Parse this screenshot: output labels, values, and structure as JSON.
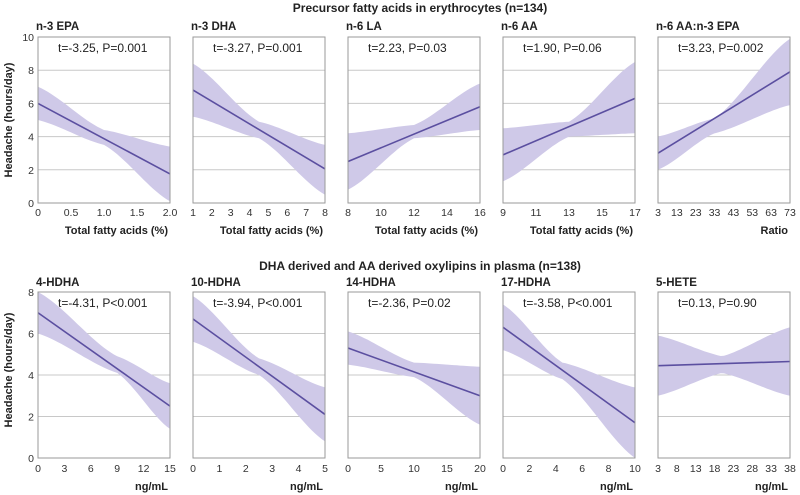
{
  "figure": {
    "row1_title": "Precursor fatty acids in erythrocytes (n=134)",
    "row2_title": "DHA derived and AA derived oxylipins in plasma (n=138)",
    "ylabel": "Headache (hours/day)"
  },
  "colors": {
    "band": "#cfc9e8",
    "line": "#5b4fa0",
    "grid": "#c8c8c8",
    "frame": "#9a9a9a"
  },
  "chart_data": [
    {
      "type": "line",
      "row": 1,
      "title": "n-3 EPA",
      "annotation": "t=-3.25, P=0.001",
      "xlabel": "Total fatty acids (%)",
      "ylabel": "Headache (hours/day)",
      "xlim": [
        0,
        2.0
      ],
      "ylim": [
        0,
        10
      ],
      "xticks": [
        0,
        0.5,
        1.0,
        1.5,
        2.0
      ],
      "xtick_labels": [
        "0",
        "0.5",
        "1.0",
        "1.5",
        "2.0"
      ],
      "yticks": [
        0,
        2,
        4,
        6,
        8,
        10
      ],
      "ytick_labels": [
        "0",
        "2",
        "4",
        "6",
        "8",
        "10"
      ],
      "line": [
        [
          0,
          6.0
        ],
        [
          2.0,
          1.75
        ]
      ],
      "band_upper": [
        [
          0,
          7.0
        ],
        [
          1.0,
          4.4
        ],
        [
          2.0,
          3.4
        ]
      ],
      "band_lower": [
        [
          0,
          5.0
        ],
        [
          1.0,
          3.5
        ],
        [
          2.0,
          0.1
        ]
      ]
    },
    {
      "type": "line",
      "row": 1,
      "title": "n-3 DHA",
      "annotation": "t=-3.27, P=0.001",
      "xlabel": "Total fatty acids (%)",
      "xlim": [
        1,
        8
      ],
      "ylim": [
        0,
        10
      ],
      "xticks": [
        1,
        2,
        3,
        4,
        5,
        6,
        7,
        8
      ],
      "xtick_labels": [
        "1",
        "2",
        "3",
        "4",
        "5",
        "6",
        "7",
        "8"
      ],
      "yticks": [
        0,
        2,
        4,
        6,
        8,
        10
      ],
      "line": [
        [
          1,
          6.8
        ],
        [
          8,
          2.05
        ]
      ],
      "band_upper": [
        [
          1,
          8.4
        ],
        [
          4.5,
          4.9
        ],
        [
          8,
          3.5
        ]
      ],
      "band_lower": [
        [
          1,
          5.2
        ],
        [
          4.5,
          3.9
        ],
        [
          8,
          0.5
        ]
      ]
    },
    {
      "type": "line",
      "row": 1,
      "title": "n-6 LA",
      "annotation": "t=2.23, P=0.03",
      "xlabel": "Total fatty acids (%)",
      "xlim": [
        8,
        16
      ],
      "ylim": [
        0,
        10
      ],
      "xticks": [
        8,
        10,
        12,
        14,
        16
      ],
      "xtick_labels": [
        "8",
        "10",
        "12",
        "14",
        "16"
      ],
      "yticks": [
        0,
        2,
        4,
        6,
        8,
        10
      ],
      "line": [
        [
          8,
          2.5
        ],
        [
          16,
          5.8
        ]
      ],
      "band_upper": [
        [
          8,
          4.2
        ],
        [
          12,
          4.7
        ],
        [
          16,
          7.2
        ]
      ],
      "band_lower": [
        [
          8,
          0.8
        ],
        [
          12,
          3.9
        ],
        [
          16,
          4.4
        ]
      ]
    },
    {
      "type": "line",
      "row": 1,
      "title": "n-6 AA",
      "annotation": "t=1.90, P=0.06",
      "xlabel": "Total fatty acids (%)",
      "xlim": [
        9,
        17
      ],
      "ylim": [
        0,
        10
      ],
      "xticks": [
        9,
        11,
        13,
        15,
        17
      ],
      "xtick_labels": [
        "9",
        "11",
        "13",
        "15",
        "17"
      ],
      "yticks": [
        0,
        2,
        4,
        6,
        8,
        10
      ],
      "line": [
        [
          9,
          2.9
        ],
        [
          17,
          6.3
        ]
      ],
      "band_upper": [
        [
          9,
          4.5
        ],
        [
          13,
          4.9
        ],
        [
          17,
          8.5
        ]
      ],
      "band_lower": [
        [
          9,
          1.3
        ],
        [
          13,
          4.0
        ],
        [
          17,
          4.2
        ]
      ]
    },
    {
      "type": "line",
      "row": 1,
      "title": "n-6 AA:n-3 EPA",
      "annotation": "t=3.23, P=0.002",
      "xlabel": "Ratio",
      "xlim": [
        3,
        73
      ],
      "ylim": [
        0,
        10
      ],
      "xticks": [
        3,
        13,
        23,
        33,
        43,
        53,
        63,
        73
      ],
      "xtick_labels": [
        "3",
        "13",
        "23",
        "33",
        "43",
        "53",
        "63",
        "73"
      ],
      "yticks": [
        0,
        2,
        4,
        6,
        8,
        10
      ],
      "line": [
        [
          3,
          3.0
        ],
        [
          73,
          7.9
        ]
      ],
      "band_upper": [
        [
          3,
          4.0
        ],
        [
          33,
          5.1
        ],
        [
          73,
          9.9
        ]
      ],
      "band_lower": [
        [
          3,
          2.0
        ],
        [
          33,
          4.2
        ],
        [
          73,
          5.9
        ]
      ]
    },
    {
      "type": "line",
      "row": 2,
      "title": "4-HDHA",
      "annotation": "t=-4.31, P<0.001",
      "xlabel": "ng/mL",
      "ylabel": "Headache (hours/day)",
      "xlim": [
        0,
        15
      ],
      "ylim": [
        0,
        8
      ],
      "xticks": [
        0,
        3,
        6,
        9,
        12,
        15
      ],
      "xtick_labels": [
        "0",
        "3",
        "6",
        "9",
        "12",
        "15"
      ],
      "yticks": [
        0,
        2,
        4,
        6,
        8
      ],
      "ytick_labels": [
        "0",
        "2",
        "4",
        "6",
        "8"
      ],
      "line": [
        [
          0,
          7.0
        ],
        [
          15,
          2.5
        ]
      ],
      "band_upper": [
        [
          0,
          8.0
        ],
        [
          9,
          4.9
        ],
        [
          15,
          3.6
        ]
      ],
      "band_lower": [
        [
          0,
          6.0
        ],
        [
          9,
          4.1
        ],
        [
          15,
          1.4
        ]
      ]
    },
    {
      "type": "line",
      "row": 2,
      "title": "10-HDHA",
      "annotation": "t=-3.94, P<0.001",
      "xlabel": "ng/mL",
      "xlim": [
        0,
        5
      ],
      "ylim": [
        0,
        8
      ],
      "xticks": [
        0,
        1,
        2,
        3,
        4,
        5
      ],
      "xtick_labels": [
        "0",
        "1",
        "2",
        "3",
        "4",
        "5"
      ],
      "yticks": [
        0,
        2,
        4,
        6,
        8
      ],
      "line": [
        [
          0,
          6.7
        ],
        [
          5,
          2.1
        ]
      ],
      "band_upper": [
        [
          0,
          7.8
        ],
        [
          2.5,
          4.8
        ],
        [
          5,
          3.4
        ]
      ],
      "band_lower": [
        [
          0,
          5.6
        ],
        [
          2.5,
          4.0
        ],
        [
          5,
          0.8
        ]
      ]
    },
    {
      "type": "line",
      "row": 2,
      "title": "14-HDHA",
      "annotation": "t=-2.36, P=0.02",
      "xlabel": "ng/mL",
      "xlim": [
        0,
        20
      ],
      "ylim": [
        0,
        8
      ],
      "xticks": [
        0,
        5,
        10,
        15,
        20
      ],
      "xtick_labels": [
        "0",
        "5",
        "10",
        "15",
        "20"
      ],
      "yticks": [
        0,
        2,
        4,
        6,
        8
      ],
      "line": [
        [
          0,
          5.3
        ],
        [
          20,
          3.0
        ]
      ],
      "band_upper": [
        [
          0,
          6.1
        ],
        [
          10,
          4.6
        ],
        [
          20,
          4.4
        ]
      ],
      "band_lower": [
        [
          0,
          4.5
        ],
        [
          10,
          3.9
        ],
        [
          20,
          1.6
        ]
      ]
    },
    {
      "type": "line",
      "row": 2,
      "title": "17-HDHA",
      "annotation": "t=-3.58, P<0.001",
      "xlabel": "ng/mL",
      "xlim": [
        0,
        10
      ],
      "ylim": [
        0,
        8
      ],
      "xticks": [
        0,
        2,
        4,
        6,
        8,
        10
      ],
      "xtick_labels": [
        "0",
        "2",
        "4",
        "6",
        "8",
        "10"
      ],
      "yticks": [
        0,
        2,
        4,
        6,
        8
      ],
      "line": [
        [
          0,
          6.3
        ],
        [
          10,
          1.7
        ]
      ],
      "band_upper": [
        [
          0,
          7.4
        ],
        [
          4.5,
          4.6
        ],
        [
          10,
          3.4
        ]
      ],
      "band_lower": [
        [
          0,
          5.2
        ],
        [
          4.5,
          3.8
        ],
        [
          10,
          0.0
        ]
      ]
    },
    {
      "type": "line",
      "row": 2,
      "title": "5-HETE",
      "annotation": "t=0.13, P=0.90",
      "xlabel": "ng/mL",
      "xlim": [
        3,
        38
      ],
      "ylim": [
        0,
        8
      ],
      "xticks": [
        3,
        8,
        13,
        18,
        23,
        28,
        33,
        38
      ],
      "xtick_labels": [
        "3",
        "8",
        "13",
        "18",
        "23",
        "28",
        "33",
        "38"
      ],
      "yticks": [
        0,
        2,
        4,
        6,
        8
      ],
      "line": [
        [
          3,
          4.45
        ],
        [
          38,
          4.65
        ]
      ],
      "band_upper": [
        [
          3,
          5.9
        ],
        [
          20,
          4.9
        ],
        [
          38,
          6.3
        ]
      ],
      "band_lower": [
        [
          3,
          3.0
        ],
        [
          20,
          4.1
        ],
        [
          38,
          3.0
        ]
      ]
    }
  ]
}
